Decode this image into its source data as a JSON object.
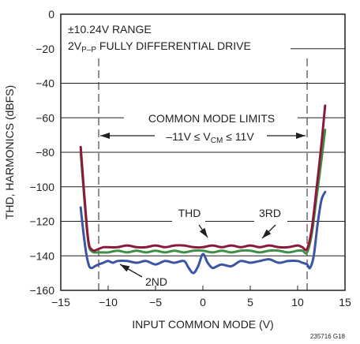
{
  "chart_data": {
    "type": "line",
    "title": "",
    "xlabel": "INPUT COMMON MODE (V)",
    "ylabel": "THD, HARMONICS (dBFS)",
    "xlim": [
      -15,
      15
    ],
    "ylim": [
      -160,
      0
    ],
    "xticks": [
      -15,
      -10,
      -5,
      0,
      5,
      10,
      15
    ],
    "yticks": [
      0,
      -20,
      -40,
      -60,
      -80,
      -100,
      -120,
      -140,
      -160
    ],
    "grid": true,
    "legend": "none",
    "series": [
      {
        "name": "THD",
        "color": "#8b1a3a",
        "x": [
          -12.9,
          -12.5,
          -12.2,
          -12.0,
          -11.8,
          -11.5,
          -11.0,
          -10.5,
          -10,
          -9,
          -8,
          -7,
          -6,
          -5,
          -4,
          -3,
          -2,
          -1,
          0,
          1,
          2,
          3,
          4,
          5,
          6,
          7,
          8,
          9,
          10,
          10.5,
          11.0,
          11.5,
          12.0,
          12.5,
          12.9
        ],
        "y": [
          -77,
          -106,
          -126,
          -134,
          -136,
          -137,
          -136,
          -135,
          -135,
          -135,
          -134,
          -135,
          -135,
          -134,
          -135,
          -134,
          -134,
          -135,
          -135,
          -134,
          -135,
          -134,
          -135,
          -134,
          -135,
          -134,
          -135,
          -135,
          -134,
          -135,
          -136,
          -124,
          -101,
          -76,
          -53
        ]
      },
      {
        "name": "3RD",
        "color": "#3f8f46",
        "x": [
          -12.9,
          -12.5,
          -12.2,
          -12.0,
          -11.8,
          -11.5,
          -11.0,
          -10.5,
          -10,
          -9,
          -8,
          -7,
          -6,
          -5,
          -4,
          -3,
          -2,
          -1,
          0,
          1,
          2,
          3,
          4,
          5,
          6,
          7,
          8,
          9,
          10,
          10.5,
          11.0,
          11.5,
          12.0,
          12.5,
          12.9
        ],
        "y": [
          -80,
          -108,
          -127,
          -135,
          -137,
          -138,
          -138,
          -138,
          -138,
          -137,
          -138,
          -137,
          -138,
          -137,
          -138,
          -137,
          -138,
          -137,
          -137,
          -138,
          -137,
          -138,
          -137,
          -137,
          -138,
          -137,
          -137,
          -138,
          -137,
          -137,
          -138,
          -127,
          -106,
          -85,
          -67
        ]
      },
      {
        "name": "2ND",
        "color": "#3a55a5",
        "x": [
          -12.9,
          -12.6,
          -12.3,
          -12.0,
          -11.7,
          -11.4,
          -11.0,
          -10.5,
          -10,
          -9.5,
          -9,
          -8,
          -7,
          -6,
          -5,
          -4,
          -3,
          -2,
          -1.5,
          -1,
          -0.5,
          0,
          0.5,
          1,
          1.5,
          2,
          3,
          4,
          5,
          6,
          7,
          8,
          9,
          10,
          10.5,
          11.0,
          11.3,
          11.7,
          12.1,
          12.5,
          12.9
        ],
        "y": [
          -112,
          -127,
          -139,
          -146,
          -147,
          -146,
          -145,
          -144,
          -143,
          -144,
          -143,
          -143,
          -144,
          -143,
          -145,
          -143,
          -144,
          -143,
          -147,
          -150,
          -146,
          -139,
          -144,
          -147,
          -146,
          -145,
          -146,
          -143,
          -144,
          -143,
          -142,
          -144,
          -143,
          -143,
          -144,
          -145,
          -147,
          -140,
          -122,
          -108,
          -103
        ]
      }
    ],
    "annotations": {
      "range": "±10.24V RANGE",
      "drive_pre": "2V",
      "drive_sub": "P–P",
      "drive_post": " FULLY DIFFERENTIAL DRIVE",
      "common_mode_title": "COMMON MODE LIMITS",
      "cm_pre": "–11V ≤ V",
      "cm_sub": "CM",
      "cm_post": " ≤ 11V",
      "thd_label": "THD",
      "third_label": "3RD",
      "second_label": "2ND",
      "limit_lines_x": [
        -11,
        11
      ]
    },
    "figure_id": "235716 G18"
  }
}
